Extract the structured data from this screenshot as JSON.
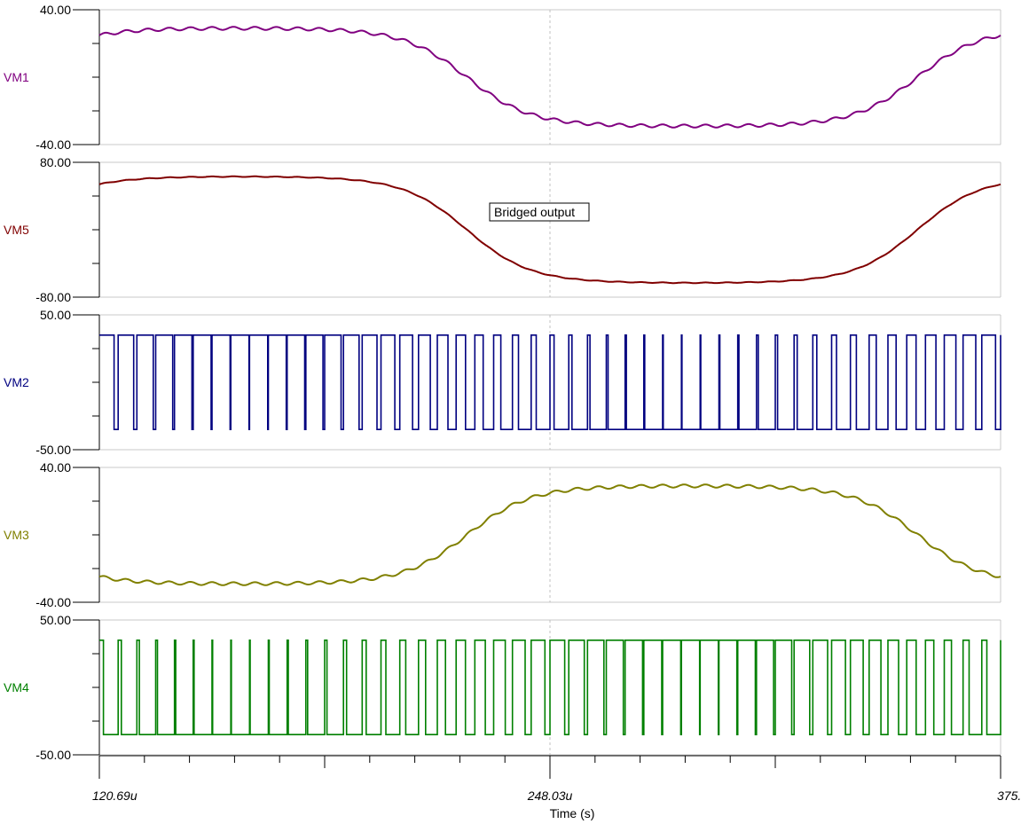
{
  "chart_data": {
    "type": "line",
    "x_axis": {
      "label": "Time (s)",
      "range": [
        120.69,
        375.37
      ],
      "tick_labels": [
        "120.69u",
        "248.03u",
        "375."
      ],
      "cursor": 248.03
    },
    "annotation": "Bridged output",
    "panels": [
      {
        "name": "VM1",
        "color": "#800080",
        "kind": "sine",
        "ylim": [
          -40,
          40
        ],
        "ytick_labels": [
          "40.00",
          "-40.00"
        ],
        "amplitude": 29,
        "phase": 0.58,
        "ripple": 0.9
      },
      {
        "name": "VM5",
        "color": "#800000",
        "kind": "sine",
        "ylim": [
          -80,
          80
        ],
        "ytick_labels": [
          "80.00",
          "-80.00"
        ],
        "amplitude": 63,
        "phase": 0.58,
        "ripple": 0.4
      },
      {
        "name": "VM2",
        "color": "#000080",
        "kind": "pwm",
        "ylim": [
          -50,
          50
        ],
        "ytick_labels": [
          "50.00",
          "-50.00"
        ],
        "high": 35,
        "low": -35,
        "duty_sign": 1
      },
      {
        "name": "VM3",
        "color": "#808000",
        "kind": "sine",
        "ylim": [
          -40,
          40
        ],
        "ytick_labels": [
          "40.00",
          "-40.00"
        ],
        "amplitude": 29,
        "phase": 3.72,
        "ripple": 0.9
      },
      {
        "name": "VM4",
        "color": "#008000",
        "kind": "pwm",
        "ylim": [
          -50,
          50
        ],
        "ytick_labels": [
          "50.00",
          "-50.00"
        ],
        "high": 35,
        "low": -35,
        "duty_sign": -1
      }
    ]
  }
}
